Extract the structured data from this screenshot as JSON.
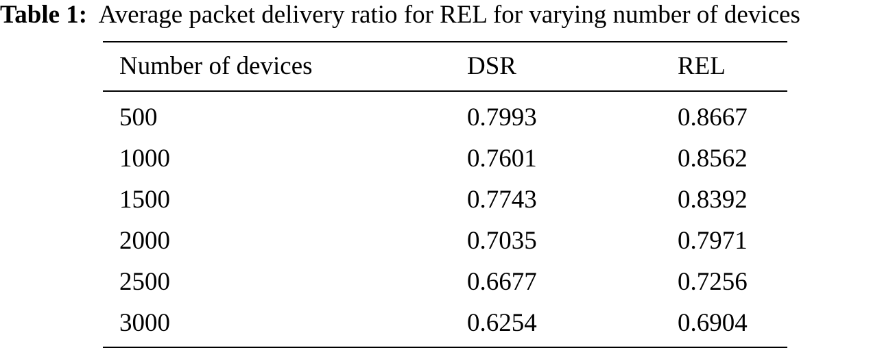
{
  "caption": {
    "label": "Table 1:",
    "text": "Average packet delivery ratio for REL for varying number of devices"
  },
  "table": {
    "headers": [
      "Number of devices",
      "DSR",
      "REL"
    ],
    "rows": [
      [
        "500",
        "0.7993",
        "0.8667"
      ],
      [
        "1000",
        "0.7601",
        "0.8562"
      ],
      [
        "1500",
        "0.7743",
        "0.8392"
      ],
      [
        "2000",
        "0.7035",
        "0.7971"
      ],
      [
        "2500",
        "0.6677",
        "0.7256"
      ],
      [
        "3000",
        "0.6254",
        "0.6904"
      ]
    ]
  }
}
